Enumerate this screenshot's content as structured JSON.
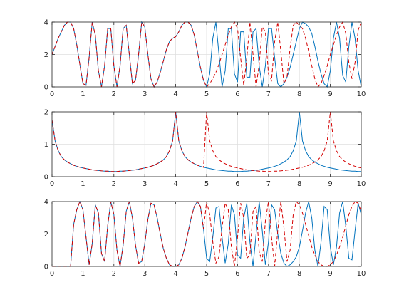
{
  "chart_data": [
    {
      "type": "line",
      "x": [
        0,
        0.1,
        0.2,
        0.3,
        0.4,
        0.5,
        0.6,
        0.7,
        0.8,
        0.9,
        1,
        1.1,
        1.2,
        1.3,
        1.4,
        1.5,
        1.6,
        1.7,
        1.8,
        1.9,
        2,
        2.1,
        2.2,
        2.3,
        2.4,
        2.5,
        2.6,
        2.7,
        2.8,
        2.9,
        3,
        3.1,
        3.2,
        3.3,
        3.4,
        3.5,
        3.6,
        3.7,
        3.8,
        3.9,
        4,
        4.1,
        4.2,
        4.3,
        4.4,
        4.5,
        4.6,
        4.7,
        4.8,
        4.9,
        5,
        5.1,
        5.2,
        5.3,
        5.4,
        5.5,
        5.6,
        5.7,
        5.8,
        5.9,
        6,
        6.1,
        6.2,
        6.3,
        6.4,
        6.5,
        6.6,
        6.7,
        6.8,
        6.9,
        7,
        7.1,
        7.2,
        7.3,
        7.4,
        7.5,
        7.6,
        7.7,
        7.8,
        7.9,
        8,
        8.1,
        8.2,
        8.3,
        8.4,
        8.5,
        8.6,
        8.7,
        8.8,
        8.9,
        9,
        9.1,
        9.2,
        9.3,
        9.4,
        9.5,
        9.6,
        9.7,
        9.8,
        9.9,
        10
      ],
      "series": [
        {
          "color": "#0072bd",
          "line_style": "solid",
          "values": [
            2.0,
            2.5,
            3.0,
            3.4,
            3.8,
            4.0,
            4.0,
            3.6,
            2.6,
            1.4,
            0.2,
            0.1,
            1.8,
            4.0,
            3.2,
            1.0,
            0.0,
            1.3,
            3.6,
            3.6,
            1.3,
            0.0,
            1.3,
            3.6,
            3.8,
            2.0,
            0.2,
            0.4,
            2.0,
            4.0,
            3.7,
            2.0,
            0.5,
            0.0,
            0.3,
            0.9,
            1.6,
            2.3,
            2.8,
            3.0,
            3.1,
            3.4,
            3.8,
            4.0,
            4.0,
            3.8,
            3.2,
            2.2,
            1.2,
            0.4,
            0.0,
            0.8,
            3.0,
            4.0,
            2.0,
            0.0,
            1.0,
            3.6,
            3.6,
            0.8,
            0.3,
            3.4,
            3.4,
            0.6,
            0.6,
            3.4,
            3.6,
            1.3,
            0.0,
            1.3,
            3.6,
            3.6,
            1.8,
            0.2,
            0.0,
            0.2,
            0.6,
            1.2,
            2.0,
            2.8,
            3.6,
            4.0,
            3.9,
            3.7,
            3.3,
            2.5,
            1.6,
            0.8,
            0.2,
            0.0,
            1.0,
            3.0,
            4.0,
            3.0,
            0.7,
            0.3,
            2.5,
            4.0,
            3.0,
            1.0,
            0.0
          ]
        },
        {
          "color": "#d40000",
          "line_style": "dashed",
          "values": [
            2.0,
            2.5,
            3.0,
            3.4,
            3.8,
            4.0,
            4.0,
            3.6,
            2.6,
            1.4,
            0.2,
            0.1,
            1.8,
            4.0,
            3.2,
            1.0,
            0.0,
            1.3,
            3.6,
            3.6,
            1.3,
            0.0,
            1.3,
            3.6,
            3.8,
            2.0,
            0.2,
            0.4,
            2.0,
            4.0,
            3.7,
            2.0,
            0.5,
            0.0,
            0.3,
            0.9,
            1.6,
            2.3,
            2.8,
            3.0,
            3.1,
            3.4,
            3.8,
            4.0,
            4.0,
            3.8,
            3.2,
            2.2,
            1.2,
            0.4,
            0.0,
            0.2,
            0.5,
            0.9,
            1.4,
            2.0,
            2.6,
            3.2,
            3.7,
            4.0,
            3.6,
            1.8,
            0.1,
            1.8,
            4.0,
            2.0,
            0.0,
            1.4,
            3.7,
            3.4,
            0.8,
            0.4,
            2.8,
            4.0,
            2.2,
            0.2,
            0.6,
            2.4,
            3.8,
            4.0,
            3.8,
            3.6,
            3.0,
            2.2,
            1.3,
            0.5,
            0.0,
            0.2,
            0.7,
            1.3,
            2.0,
            2.6,
            3.2,
            3.7,
            4.0,
            3.3,
            1.5,
            0.5,
            1.5,
            3.5,
            4.0
          ]
        }
      ],
      "xlim": [
        0,
        10
      ],
      "xticks": [
        0,
        1,
        2,
        3,
        4,
        5,
        6,
        7,
        8,
        9,
        10
      ],
      "ylim": [
        0,
        4
      ],
      "yticks": [
        0,
        2,
        4
      ],
      "grid": true
    },
    {
      "type": "line",
      "x": [
        0,
        0.1,
        0.2,
        0.3,
        0.4,
        0.5,
        0.6,
        0.7,
        0.8,
        0.9,
        1,
        1.1,
        1.2,
        1.3,
        1.4,
        1.5,
        1.6,
        1.7,
        1.8,
        1.9,
        2,
        2.1,
        2.2,
        2.3,
        2.4,
        2.5,
        2.6,
        2.7,
        2.8,
        2.9,
        3,
        3.1,
        3.2,
        3.3,
        3.4,
        3.5,
        3.6,
        3.7,
        3.8,
        3.9,
        4,
        4.1,
        4.2,
        4.3,
        4.4,
        4.5,
        4.6,
        4.7,
        4.8,
        4.9,
        5,
        5.1,
        5.2,
        5.3,
        5.4,
        5.5,
        5.6,
        5.7,
        5.8,
        5.9,
        6,
        6.1,
        6.2,
        6.3,
        6.4,
        6.5,
        6.6,
        6.7,
        6.8,
        6.9,
        7,
        7.1,
        7.2,
        7.3,
        7.4,
        7.5,
        7.6,
        7.7,
        7.8,
        7.9,
        8,
        8.1,
        8.2,
        8.3,
        8.4,
        8.5,
        8.6,
        8.7,
        8.8,
        8.9,
        9,
        9.1,
        9.2,
        9.3,
        9.4,
        9.5,
        9.6,
        9.7,
        9.8,
        9.9,
        10
      ],
      "series": [
        {
          "color": "#0072bd",
          "line_style": "solid",
          "values": [
            1.75,
            1.1,
            0.8,
            0.62,
            0.52,
            0.45,
            0.4,
            0.35,
            0.32,
            0.29,
            0.27,
            0.25,
            0.23,
            0.21,
            0.2,
            0.19,
            0.18,
            0.17,
            0.17,
            0.16,
            0.16,
            0.16,
            0.17,
            0.17,
            0.18,
            0.19,
            0.2,
            0.21,
            0.23,
            0.25,
            0.27,
            0.29,
            0.32,
            0.35,
            0.4,
            0.45,
            0.52,
            0.62,
            0.8,
            1.1,
            2.0,
            1.1,
            0.8,
            0.62,
            0.52,
            0.45,
            0.4,
            0.35,
            0.32,
            0.29,
            0.27,
            0.25,
            0.23,
            0.21,
            0.2,
            0.19,
            0.18,
            0.17,
            0.17,
            0.16,
            0.16,
            0.16,
            0.17,
            0.17,
            0.18,
            0.19,
            0.2,
            0.21,
            0.23,
            0.25,
            0.27,
            0.29,
            0.32,
            0.35,
            0.4,
            0.45,
            0.52,
            0.62,
            0.8,
            1.1,
            2.0,
            1.1,
            0.8,
            0.62,
            0.52,
            0.45,
            0.4,
            0.35,
            0.32,
            0.29,
            0.27,
            0.25,
            0.23,
            0.21,
            0.2,
            0.19,
            0.18,
            0.17,
            0.17,
            0.16,
            0.16
          ]
        },
        {
          "color": "#d40000",
          "line_style": "dashed",
          "values": [
            1.75,
            1.1,
            0.8,
            0.62,
            0.52,
            0.45,
            0.4,
            0.35,
            0.32,
            0.29,
            0.27,
            0.25,
            0.23,
            0.21,
            0.2,
            0.19,
            0.18,
            0.17,
            0.17,
            0.16,
            0.16,
            0.16,
            0.17,
            0.17,
            0.18,
            0.19,
            0.2,
            0.21,
            0.23,
            0.25,
            0.27,
            0.29,
            0.32,
            0.35,
            0.4,
            0.45,
            0.52,
            0.62,
            0.8,
            1.1,
            2.0,
            1.1,
            0.8,
            0.62,
            0.52,
            0.45,
            0.4,
            0.35,
            0.32,
            0.29,
            2.0,
            1.1,
            0.8,
            0.62,
            0.52,
            0.45,
            0.4,
            0.35,
            0.32,
            0.29,
            0.27,
            0.25,
            0.23,
            0.21,
            0.2,
            0.19,
            0.18,
            0.17,
            0.17,
            0.16,
            0.16,
            0.16,
            0.17,
            0.17,
            0.18,
            0.19,
            0.2,
            0.21,
            0.23,
            0.25,
            0.27,
            0.29,
            0.32,
            0.35,
            0.4,
            0.45,
            0.52,
            0.62,
            0.8,
            1.1,
            2.0,
            1.1,
            0.8,
            0.62,
            0.52,
            0.45,
            0.4,
            0.35,
            0.32,
            0.29,
            0.27
          ]
        }
      ],
      "xlim": [
        0,
        10
      ],
      "xticks": [
        0,
        1,
        2,
        3,
        4,
        5,
        6,
        7,
        8,
        9,
        10
      ],
      "ylim": [
        0,
        2
      ],
      "yticks": [
        0,
        1,
        2
      ],
      "grid": true
    },
    {
      "type": "line",
      "x": [
        0,
        0.1,
        0.2,
        0.3,
        0.4,
        0.5,
        0.6,
        0.7,
        0.8,
        0.9,
        1,
        1.1,
        1.2,
        1.3,
        1.4,
        1.5,
        1.6,
        1.7,
        1.8,
        1.9,
        2,
        2.1,
        2.2,
        2.3,
        2.4,
        2.5,
        2.6,
        2.7,
        2.8,
        2.9,
        3,
        3.1,
        3.2,
        3.3,
        3.4,
        3.5,
        3.6,
        3.7,
        3.8,
        3.9,
        4,
        4.1,
        4.2,
        4.3,
        4.4,
        4.5,
        4.6,
        4.7,
        4.8,
        4.9,
        5,
        5.1,
        5.2,
        5.3,
        5.4,
        5.5,
        5.6,
        5.7,
        5.8,
        5.9,
        6,
        6.1,
        6.2,
        6.3,
        6.4,
        6.5,
        6.6,
        6.7,
        6.8,
        6.9,
        7,
        7.1,
        7.2,
        7.3,
        7.4,
        7.5,
        7.6,
        7.7,
        7.8,
        7.9,
        8,
        8.1,
        8.2,
        8.3,
        8.4,
        8.5,
        8.6,
        8.7,
        8.8,
        8.9,
        9,
        9.1,
        9.2,
        9.3,
        9.4,
        9.5,
        9.6,
        9.7,
        9.8,
        9.9,
        10
      ],
      "series": [
        {
          "color": "#0072bd",
          "line_style": "solid",
          "values": [
            0,
            0,
            0,
            0,
            0,
            0,
            0,
            2.6,
            3.5,
            4.0,
            3.5,
            1.8,
            0.1,
            1.4,
            3.8,
            3.3,
            0.8,
            0.3,
            2.5,
            4.0,
            3.2,
            1.0,
            0.0,
            1.3,
            3.4,
            4.0,
            3.0,
            1.3,
            0.2,
            0.3,
            1.4,
            2.9,
            3.9,
            3.8,
            3.0,
            2.0,
            1.1,
            0.5,
            0.1,
            0.0,
            0.0,
            0.1,
            0.5,
            1.2,
            2.1,
            3.0,
            3.7,
            4.0,
            3.7,
            2.3,
            0.5,
            0.3,
            1.8,
            3.6,
            3.7,
            1.8,
            0.2,
            1.4,
            3.8,
            3.2,
            0.7,
            0.5,
            3.0,
            3.9,
            1.5,
            0.0,
            2.0,
            4.0,
            2.2,
            0.1,
            1.5,
            3.8,
            3.5,
            2.0,
            0.8,
            0.2,
            0.0,
            0.1,
            0.3,
            0.6,
            1.2,
            2.2,
            3.3,
            4.0,
            3.0,
            1.0,
            0.0,
            1.5,
            3.7,
            3.5,
            1.2,
            0.1,
            1.2,
            3.3,
            4.0,
            2.5,
            0.5,
            0.4,
            2.2,
            3.9,
            3.2
          ]
        },
        {
          "color": "#d40000",
          "line_style": "dashed",
          "values": [
            0,
            0,
            0,
            0,
            0,
            0,
            0,
            2.6,
            3.5,
            4.0,
            3.5,
            1.8,
            0.1,
            1.4,
            3.8,
            3.3,
            0.8,
            0.3,
            2.5,
            4.0,
            3.2,
            1.0,
            0.0,
            1.3,
            3.4,
            4.0,
            3.0,
            1.3,
            0.2,
            0.3,
            1.4,
            2.9,
            3.9,
            3.8,
            3.0,
            2.0,
            1.1,
            0.5,
            0.1,
            0.0,
            0.0,
            0.1,
            0.5,
            1.2,
            2.1,
            3.0,
            3.7,
            4.0,
            3.7,
            2.3,
            4.0,
            3.2,
            1.5,
            0.2,
            0.6,
            2.4,
            3.9,
            3.5,
            1.2,
            0.0,
            1.8,
            3.9,
            3.0,
            0.5,
            0.7,
            3.4,
            3.7,
            0.9,
            0.3,
            2.8,
            4.0,
            1.8,
            0.0,
            2.2,
            4.0,
            2.4,
            0.3,
            1.0,
            3.2,
            4.0,
            3.8,
            3.3,
            2.6,
            1.9,
            1.2,
            0.7,
            0.3,
            0.1,
            0.0,
            0.0,
            0.1,
            0.3,
            0.7,
            1.2,
            1.8,
            2.5,
            3.2,
            3.7,
            4.0,
            3.9,
            3.4
          ]
        }
      ],
      "xlim": [
        0,
        10
      ],
      "xticks": [
        0,
        1,
        2,
        3,
        4,
        5,
        6,
        7,
        8,
        9,
        10
      ],
      "ylim": [
        0,
        4
      ],
      "yticks": [
        0,
        2,
        4
      ],
      "grid": true
    }
  ]
}
